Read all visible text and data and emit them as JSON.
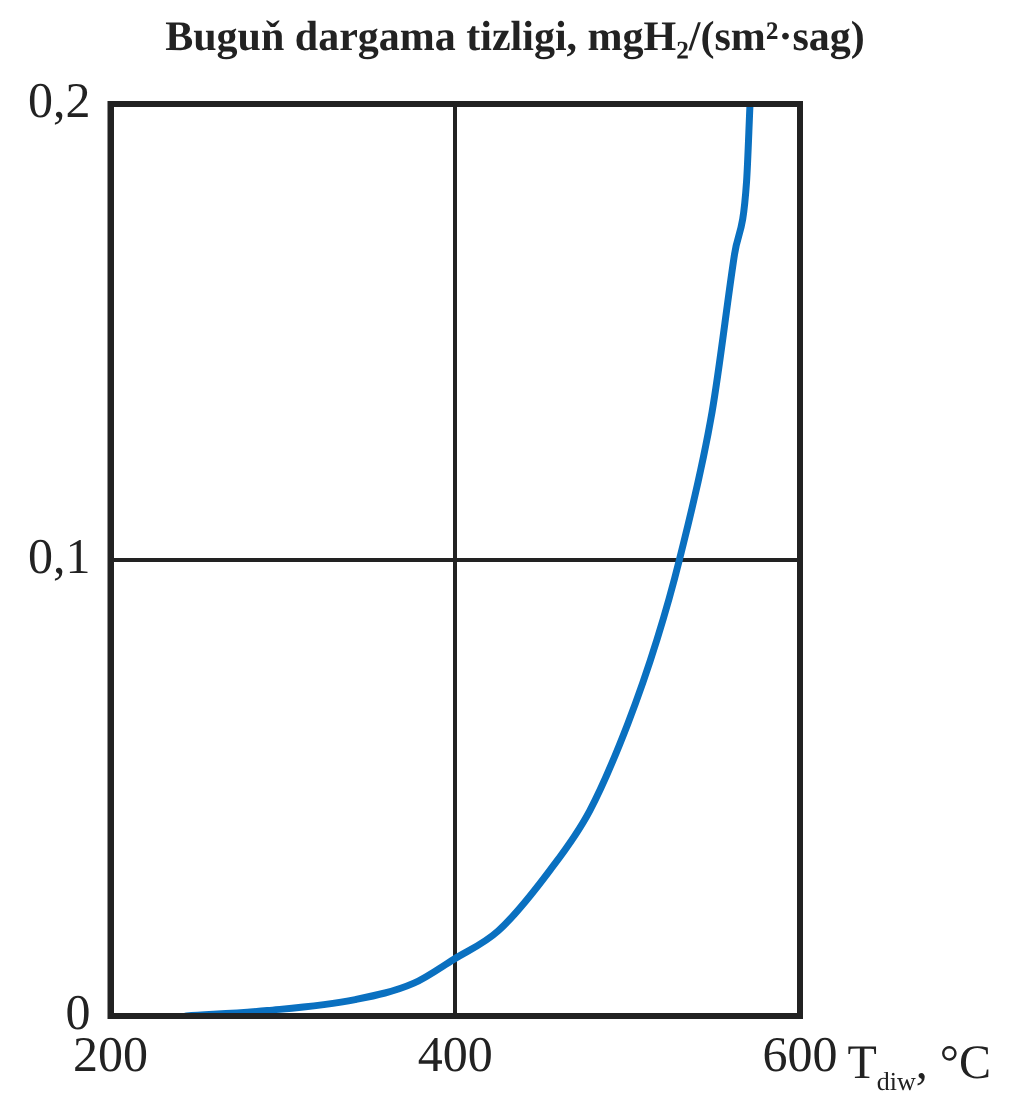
{
  "chart_data": {
    "type": "line",
    "title": "Buguň dargama tizligi, mgH₂/(sm²·sag)",
    "xlabel": "T$_{diw}$, °C",
    "x": [
      244,
      291,
      342,
      376,
      399,
      425,
      455,
      478,
      500,
      517,
      530,
      549,
      562,
      569,
      571
    ],
    "series": [
      {
        "color": "#0a70c0",
        "values": [
          0,
          0.0012,
          0.0036,
          0.0072,
          0.0124,
          0.0187,
          0.032,
          0.045,
          0.064,
          0.0825,
          0.1,
          0.1325,
          0.167,
          0.183,
          0.2
        ]
      }
    ],
    "xlim": [
      200,
      600
    ],
    "ylim": [
      0,
      0.2
    ],
    "xticks": [
      200,
      400,
      600
    ],
    "yticks": [
      {
        "value": 0,
        "label": "0"
      },
      {
        "value": 0.1,
        "label": "0,1"
      },
      {
        "value": 0.2,
        "label": "0,2"
      }
    ],
    "grid": true,
    "marker": "none",
    "line_style": "solid"
  }
}
